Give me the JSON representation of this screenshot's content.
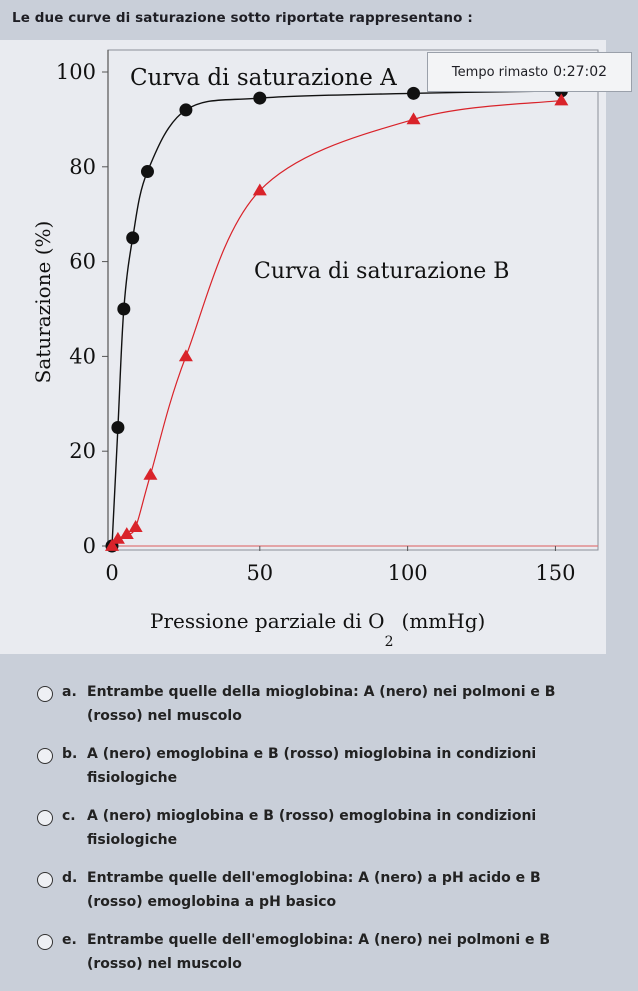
{
  "question": "Le due curve di saturazione sotto riportate rappresentano :",
  "timer": {
    "label": "Tempo rimasto",
    "value": "0:27:02"
  },
  "chart_data": {
    "type": "line",
    "title": "Curva di saturazione A",
    "xlabel_main": "Pressione parziale di O",
    "xlabel_sub": "2",
    "xlabel_unit": "(mmHg)",
    "ylabel": "Saturazione (%)",
    "xlim": [
      0,
      160
    ],
    "ylim": [
      0,
      100
    ],
    "x_ticks": [
      0,
      50,
      100,
      150
    ],
    "y_ticks": [
      0,
      20,
      40,
      60,
      80,
      100
    ],
    "series": [
      {
        "name": "Curva di saturazione A",
        "color": "#111111",
        "marker": "circle",
        "points": [
          [
            0,
            0
          ],
          [
            2,
            25
          ],
          [
            4,
            50
          ],
          [
            7,
            65
          ],
          [
            12,
            79
          ],
          [
            25,
            92
          ],
          [
            50,
            94.5
          ],
          [
            102,
            95.5
          ],
          [
            152,
            96
          ]
        ]
      },
      {
        "name": "Curva di saturazione B",
        "color": "#d9232a",
        "marker": "triangle",
        "points": [
          [
            0,
            0
          ],
          [
            2,
            1.5
          ],
          [
            5,
            2.5
          ],
          [
            8,
            4
          ],
          [
            13,
            15
          ],
          [
            25,
            40
          ],
          [
            50,
            75
          ],
          [
            102,
            90
          ],
          [
            152,
            94
          ]
        ]
      }
    ],
    "curve_b_label": "Curva di saturazione B"
  },
  "options": [
    {
      "letter": "a.",
      "text": "Entrambe quelle della mioglobina: A (nero) nei polmoni e B (rosso) nel muscolo"
    },
    {
      "letter": "b.",
      "text": "A (nero) emoglobina e B (rosso) mioglobina in condizioni fisiologiche"
    },
    {
      "letter": "c.",
      "text": "A (nero) mioglobina e B (rosso) emoglobina in condizioni fisiologiche"
    },
    {
      "letter": "d.",
      "text": "Entrambe quelle dell'emoglobina: A (nero) a pH acido e B (rosso) emoglobina a pH basico"
    },
    {
      "letter": "e.",
      "text": "Entrambe quelle dell'emoglobina: A (nero) nei polmoni e B (rosso) nel muscolo"
    }
  ]
}
